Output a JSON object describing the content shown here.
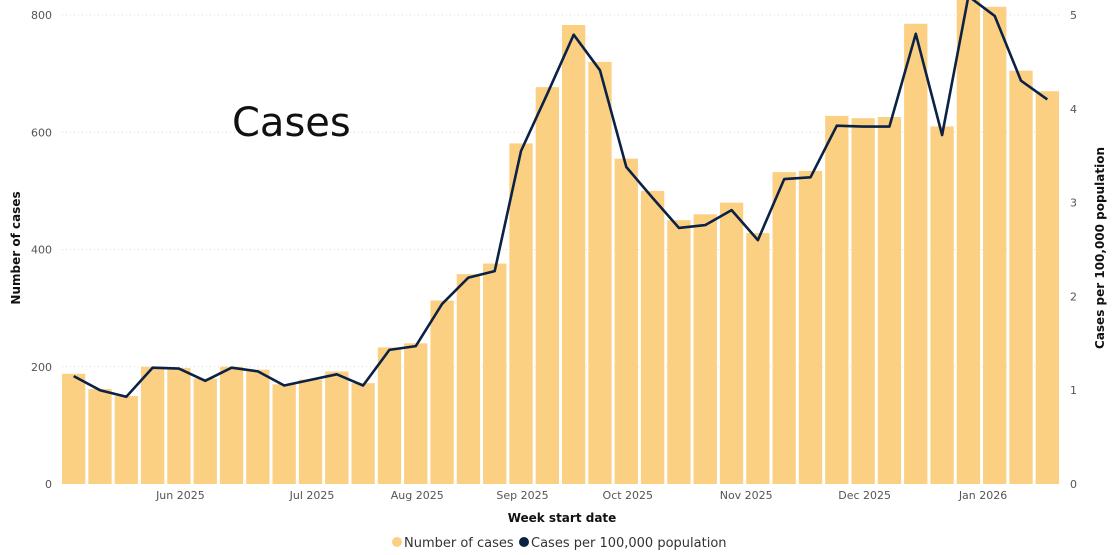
{
  "overlay_title": "Cases",
  "chart_data": {
    "type": "bar",
    "title": "",
    "xlabel": "Week start date",
    "ylabel": "Number of cases",
    "y2label": "Cases per 100,000 population",
    "ylim": [
      0,
      800
    ],
    "y2lim": [
      0,
      5
    ],
    "yticks": [
      0,
      200,
      400,
      600,
      800
    ],
    "y2ticks": [
      0,
      1,
      2,
      3,
      4,
      5
    ],
    "x_tick_labels": [
      {
        "label": "Jun 2025",
        "index": 4.5
      },
      {
        "label": "Jul 2025",
        "index": 9.5
      },
      {
        "label": "Aug 2025",
        "index": 13.5
      },
      {
        "label": "Sep 2025",
        "index": 17.5
      },
      {
        "label": "Oct 2025",
        "index": 21.5
      },
      {
        "label": "Nov 2025",
        "index": 26
      },
      {
        "label": "Dec 2025",
        "index": 30.5
      },
      {
        "label": "Jan 2026",
        "index": 35
      }
    ],
    "gridlines": true,
    "legend_position": "bottom",
    "series": [
      {
        "name": "Number of cases",
        "type": "bar",
        "color": "#FCD083",
        "values": [
          188,
          162,
          150,
          200,
          198,
          180,
          200,
          195,
          170,
          178,
          192,
          172,
          233,
          240,
          313,
          358,
          376,
          581,
          677,
          783,
          720,
          555,
          500,
          450,
          460,
          480,
          428,
          532,
          534,
          628,
          624,
          626,
          785,
          610,
          830,
          814,
          705,
          670
        ]
      },
      {
        "name": "Cases per 100,000 population",
        "type": "line",
        "color": "#0B2145",
        "values": [
          1.15,
          1.0,
          0.93,
          1.24,
          1.23,
          1.1,
          1.24,
          1.2,
          1.05,
          1.11,
          1.17,
          1.05,
          1.43,
          1.47,
          1.92,
          2.2,
          2.27,
          3.55,
          4.16,
          4.79,
          4.41,
          3.38,
          3.05,
          2.73,
          2.76,
          2.92,
          2.6,
          3.25,
          3.27,
          3.82,
          3.81,
          3.81,
          4.8,
          3.72,
          5.2,
          4.99,
          4.3,
          4.1
        ]
      }
    ]
  }
}
